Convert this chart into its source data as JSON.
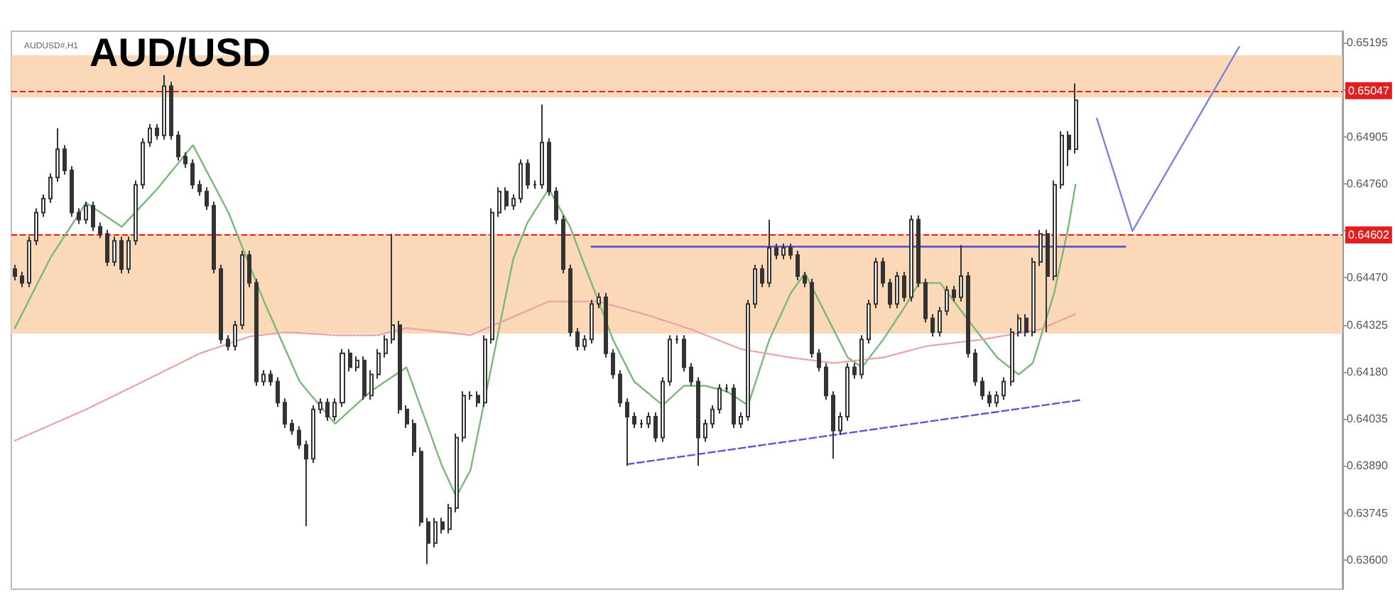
{
  "chart_data": {
    "type": "candlestick",
    "title": "AUD/USD",
    "subtitle": "AUDUSD#,H1",
    "tick_labels": "y",
    "color": "#333333",
    "categories": [
      null,
      null,
      null,
      null,
      null,
      null,
      null,
      null,
      null,
      null,
      null,
      null,
      null,
      null,
      null,
      null,
      null,
      null,
      null,
      null,
      null,
      null,
      null,
      null,
      null,
      null,
      null,
      null,
      null,
      null,
      null,
      null,
      null,
      null,
      null,
      null,
      null,
      null,
      null,
      null,
      null,
      null,
      null,
      null,
      null,
      null,
      null,
      null,
      null,
      null,
      null,
      null,
      null,
      null,
      null,
      null,
      null,
      null,
      null,
      null,
      null,
      null,
      null,
      null,
      null,
      null,
      null,
      null,
      null,
      null,
      null,
      null,
      null,
      null,
      null,
      null,
      null,
      null,
      null,
      null,
      null,
      null,
      null,
      null,
      null,
      null,
      null,
      null,
      null,
      null,
      null,
      null,
      null,
      null,
      null,
      null,
      null,
      null,
      null,
      null,
      null,
      null,
      null,
      null,
      null,
      null,
      null,
      null,
      null,
      null,
      null,
      null,
      null,
      null,
      null,
      null,
      null,
      null,
      null,
      null,
      null,
      null,
      null,
      null,
      null,
      null,
      null,
      null,
      null,
      null,
      null,
      null,
      null,
      null,
      null,
      null,
      null,
      null,
      null,
      null,
      null,
      null,
      null,
      null,
      null,
      null,
      null,
      null,
      null,
      null,
      null,
      null,
      null,
      null,
      null,
      null,
      null,
      null,
      null,
      null,
      null,
      null,
      null,
      null,
      null,
      null,
      null,
      null,
      null,
      null,
      null,
      null,
      null,
      null,
      null,
      null,
      null,
      null,
      null,
      null,
      null,
      null,
      null,
      null,
      null,
      null,
      null
    ],
    "ohlc": [
      [
        0.64497,
        0.6451,
        0.64462,
        0.64475
      ],
      [
        0.64475,
        0.64488,
        0.64441,
        0.64454
      ],
      [
        0.64454,
        0.64597,
        0.64441,
        0.64584
      ],
      [
        0.64584,
        0.64684,
        0.64571,
        0.64671
      ],
      [
        0.64671,
        0.64727,
        0.64658,
        0.64714
      ],
      [
        0.64714,
        0.64792,
        0.64701,
        0.64779
      ],
      [
        0.64779,
        0.64931,
        0.64766,
        0.64866
      ],
      [
        0.64866,
        0.64879,
        0.64788,
        0.64801
      ],
      [
        0.64801,
        0.64814,
        0.64658,
        0.64671
      ],
      [
        0.64671,
        0.64684,
        0.64636,
        0.64649
      ],
      [
        0.64649,
        0.64705,
        0.64636,
        0.64692
      ],
      [
        0.64692,
        0.64705,
        0.64614,
        0.64627
      ],
      [
        0.64627,
        0.6464,
        0.64592,
        0.64605
      ],
      [
        0.64605,
        0.64618,
        0.64506,
        0.64519
      ],
      [
        0.64519,
        0.64597,
        0.64506,
        0.64584
      ],
      [
        0.64584,
        0.64597,
        0.64484,
        0.64497
      ],
      [
        0.64497,
        0.64597,
        0.64484,
        0.64584
      ],
      [
        0.64584,
        0.6477,
        0.64571,
        0.64757
      ],
      [
        0.64757,
        0.649,
        0.64744,
        0.64887
      ],
      [
        0.64887,
        0.64944,
        0.64874,
        0.64931
      ],
      [
        0.64931,
        0.64944,
        0.64896,
        0.64909
      ],
      [
        0.64909,
        0.65095,
        0.64896,
        0.65061
      ],
      [
        0.65061,
        0.65074,
        0.64896,
        0.64909
      ],
      [
        0.64909,
        0.64922,
        0.64831,
        0.64844
      ],
      [
        0.64844,
        0.64857,
        0.64809,
        0.64822
      ],
      [
        0.64822,
        0.64835,
        0.64744,
        0.64757
      ],
      [
        0.64757,
        0.6477,
        0.64723,
        0.64736
      ],
      [
        0.64736,
        0.64749,
        0.64679,
        0.64692
      ],
      [
        0.64692,
        0.64705,
        0.64484,
        0.64497
      ],
      [
        0.64497,
        0.6451,
        0.64267,
        0.6428
      ],
      [
        0.6428,
        0.64293,
        0.64246,
        0.64259
      ],
      [
        0.64259,
        0.64337,
        0.64246,
        0.64324
      ],
      [
        0.64324,
        0.64553,
        0.64311,
        0.6454
      ],
      [
        0.6454,
        0.64553,
        0.64441,
        0.64454
      ],
      [
        0.64454,
        0.64467,
        0.64137,
        0.6415
      ],
      [
        0.6415,
        0.64185,
        0.64137,
        0.64172
      ],
      [
        0.64172,
        0.64185,
        0.64137,
        0.6415
      ],
      [
        0.6415,
        0.64163,
        0.64072,
        0.64085
      ],
      [
        0.64085,
        0.64098,
        0.64007,
        0.6402
      ],
      [
        0.6402,
        0.64033,
        0.63986,
        0.63999
      ],
      [
        0.63999,
        0.64012,
        0.63942,
        0.63955
      ],
      [
        0.63955,
        0.63968,
        0.63704,
        0.63912
      ],
      [
        0.63912,
        0.64077,
        0.63899,
        0.64064
      ],
      [
        0.64064,
        0.64098,
        0.64051,
        0.64085
      ],
      [
        0.64085,
        0.64098,
        0.64029,
        0.64042
      ],
      [
        0.64042,
        0.64098,
        0.64029,
        0.64085
      ],
      [
        0.64085,
        0.6425,
        0.64072,
        0.64237
      ],
      [
        0.64237,
        0.6425,
        0.64181,
        0.64194
      ],
      [
        0.64194,
        0.64228,
        0.64181,
        0.64215
      ],
      [
        0.64215,
        0.64228,
        0.64094,
        0.64107
      ],
      [
        0.64107,
        0.64185,
        0.64094,
        0.64172
      ],
      [
        0.64172,
        0.6425,
        0.64159,
        0.64237
      ],
      [
        0.64237,
        0.64293,
        0.64224,
        0.6428
      ],
      [
        0.6428,
        0.64605,
        0.64267,
        0.64324
      ],
      [
        0.64324,
        0.64337,
        0.64051,
        0.64064
      ],
      [
        0.64064,
        0.64077,
        0.64007,
        0.6402
      ],
      [
        0.6402,
        0.64033,
        0.63921,
        0.63934
      ],
      [
        0.63934,
        0.63947,
        0.63704,
        0.63717
      ],
      [
        0.63717,
        0.6373,
        0.63587,
        0.63652
      ],
      [
        0.63652,
        0.6373,
        0.63639,
        0.63717
      ],
      [
        0.63717,
        0.6373,
        0.63682,
        0.63695
      ],
      [
        0.63695,
        0.63773,
        0.63682,
        0.6376
      ],
      [
        0.6376,
        0.6399,
        0.63747,
        0.63977
      ],
      [
        0.63977,
        0.6412,
        0.63964,
        0.64107
      ],
      [
        0.64107,
        0.6412,
        0.64094,
        0.64107
      ],
      [
        0.64107,
        0.6412,
        0.64072,
        0.64085
      ],
      [
        0.64085,
        0.64293,
        0.64072,
        0.6428
      ],
      [
        0.6428,
        0.64684,
        0.64267,
        0.64671
      ],
      [
        0.64671,
        0.64749,
        0.64658,
        0.64736
      ],
      [
        0.64736,
        0.64749,
        0.64679,
        0.64692
      ],
      [
        0.64692,
        0.64727,
        0.64679,
        0.64714
      ],
      [
        0.64714,
        0.64835,
        0.64701,
        0.64822
      ],
      [
        0.64822,
        0.64835,
        0.64744,
        0.64757
      ],
      [
        0.64757,
        0.6477,
        0.64744,
        0.64757
      ],
      [
        0.64757,
        0.65004,
        0.64744,
        0.64887
      ],
      [
        0.64887,
        0.649,
        0.64723,
        0.64736
      ],
      [
        0.64736,
        0.64749,
        0.64636,
        0.64649
      ],
      [
        0.64649,
        0.64662,
        0.64484,
        0.64497
      ],
      [
        0.64497,
        0.6451,
        0.64289,
        0.64302
      ],
      [
        0.64302,
        0.64315,
        0.64246,
        0.64259
      ],
      [
        0.64259,
        0.64293,
        0.64246,
        0.6428
      ],
      [
        0.6428,
        0.64402,
        0.64267,
        0.64389
      ],
      [
        0.64389,
        0.64423,
        0.64376,
        0.6441
      ],
      [
        0.6441,
        0.64423,
        0.64224,
        0.64237
      ],
      [
        0.64237,
        0.6425,
        0.64159,
        0.64172
      ],
      [
        0.64172,
        0.64185,
        0.64072,
        0.64085
      ],
      [
        0.64085,
        0.64098,
        0.6389,
        0.64042
      ],
      [
        0.64042,
        0.64055,
        0.64007,
        0.6402
      ],
      [
        0.6402,
        0.64033,
        0.64007,
        0.6402
      ],
      [
        0.6402,
        0.64055,
        0.64007,
        0.64042
      ],
      [
        0.64042,
        0.64055,
        0.63964,
        0.63977
      ],
      [
        0.63977,
        0.64163,
        0.63964,
        0.6415
      ],
      [
        0.6415,
        0.64293,
        0.64137,
        0.6428
      ],
      [
        0.6428,
        0.64293,
        0.64267,
        0.6428
      ],
      [
        0.6428,
        0.64293,
        0.64181,
        0.64194
      ],
      [
        0.64194,
        0.64207,
        0.64137,
        0.6415
      ],
      [
        0.6415,
        0.64163,
        0.6389,
        0.63977
      ],
      [
        0.63977,
        0.64033,
        0.63964,
        0.6402
      ],
      [
        0.6402,
        0.64077,
        0.64007,
        0.64064
      ],
      [
        0.64064,
        0.64142,
        0.64051,
        0.64129
      ],
      [
        0.64129,
        0.64142,
        0.64116,
        0.64129
      ],
      [
        0.64129,
        0.64142,
        0.64007,
        0.6402
      ],
      [
        0.6402,
        0.64055,
        0.64007,
        0.64042
      ],
      [
        0.64042,
        0.64402,
        0.64029,
        0.64389
      ],
      [
        0.64389,
        0.6451,
        0.64376,
        0.64497
      ],
      [
        0.64497,
        0.6451,
        0.64441,
        0.64454
      ],
      [
        0.64454,
        0.64649,
        0.64441,
        0.64562
      ],
      [
        0.64562,
        0.64575,
        0.64527,
        0.6454
      ],
      [
        0.6454,
        0.64575,
        0.64527,
        0.64562
      ],
      [
        0.64562,
        0.64575,
        0.64527,
        0.6454
      ],
      [
        0.6454,
        0.64553,
        0.64462,
        0.64475
      ],
      [
        0.64475,
        0.64488,
        0.64441,
        0.64454
      ],
      [
        0.64454,
        0.64467,
        0.64224,
        0.64237
      ],
      [
        0.64237,
        0.6425,
        0.64181,
        0.64194
      ],
      [
        0.64194,
        0.64207,
        0.64094,
        0.64107
      ],
      [
        0.64107,
        0.6412,
        0.63912,
        0.63999
      ],
      [
        0.63999,
        0.64055,
        0.63986,
        0.64042
      ],
      [
        0.64042,
        0.64207,
        0.64029,
        0.64194
      ],
      [
        0.64194,
        0.64207,
        0.64159,
        0.64172
      ],
      [
        0.64172,
        0.64293,
        0.64159,
        0.6428
      ],
      [
        0.6428,
        0.64402,
        0.64267,
        0.64389
      ],
      [
        0.64389,
        0.64532,
        0.64376,
        0.64519
      ],
      [
        0.64519,
        0.64532,
        0.64441,
        0.64454
      ],
      [
        0.64454,
        0.64467,
        0.64376,
        0.64389
      ],
      [
        0.64389,
        0.64488,
        0.64376,
        0.64475
      ],
      [
        0.64475,
        0.64488,
        0.64397,
        0.6441
      ],
      [
        0.6441,
        0.64662,
        0.64397,
        0.64649
      ],
      [
        0.64649,
        0.64662,
        0.64441,
        0.64454
      ],
      [
        0.64454,
        0.64467,
        0.64332,
        0.64345
      ],
      [
        0.64345,
        0.64358,
        0.64289,
        0.64302
      ],
      [
        0.64302,
        0.6438,
        0.64289,
        0.64367
      ],
      [
        0.64367,
        0.64445,
        0.64354,
        0.64432
      ],
      [
        0.64432,
        0.64445,
        0.64397,
        0.6441
      ],
      [
        0.6441,
        0.64571,
        0.64397,
        0.64475
      ],
      [
        0.64475,
        0.64488,
        0.64224,
        0.64237
      ],
      [
        0.64237,
        0.6425,
        0.64137,
        0.6415
      ],
      [
        0.6415,
        0.64163,
        0.64094,
        0.64107
      ],
      [
        0.64107,
        0.6412,
        0.64072,
        0.64085
      ],
      [
        0.64085,
        0.6412,
        0.64072,
        0.64107
      ],
      [
        0.64107,
        0.64163,
        0.64094,
        0.6415
      ],
      [
        0.6415,
        0.64315,
        0.64137,
        0.64302
      ],
      [
        0.64302,
        0.64358,
        0.64289,
        0.64345
      ],
      [
        0.64345,
        0.64358,
        0.64289,
        0.64302
      ],
      [
        0.64302,
        0.64532,
        0.64289,
        0.64519
      ],
      [
        0.64519,
        0.64618,
        0.64506,
        0.64605
      ],
      [
        0.64605,
        0.64618,
        0.64302,
        0.64475
      ],
      [
        0.64475,
        0.6477,
        0.64462,
        0.64757
      ],
      [
        0.64757,
        0.64922,
        0.64744,
        0.64909
      ],
      [
        0.64909,
        0.64922,
        0.64814,
        0.64866
      ],
      [
        0.64866,
        0.65069,
        0.64853,
        0.65017
      ],
      null,
      null,
      null,
      null,
      null,
      null,
      null,
      null,
      null,
      null,
      null,
      null,
      null,
      null,
      null,
      null,
      null,
      null,
      null,
      null,
      null,
      null,
      null,
      null,
      null,
      null,
      null,
      null,
      null,
      null,
      null,
      null,
      null,
      null,
      null,
      null,
      null
    ],
    "ylim": [
      0.6351,
      0.6523
    ],
    "yticks": [
      {
        "value": 0.636,
        "label": "0.63600"
      },
      {
        "value": 0.63745,
        "label": "0.63745"
      },
      {
        "value": 0.6389,
        "label": "0.63890"
      },
      {
        "value": 0.64035,
        "label": "0.64035"
      },
      {
        "value": 0.6418,
        "label": "0.64180"
      },
      {
        "value": 0.64325,
        "label": "0.64325"
      },
      {
        "value": 0.6447,
        "label": "0.64470"
      },
      {
        "value": 0.64615,
        "label": null
      },
      {
        "value": 0.6476,
        "label": "0.64760"
      },
      {
        "value": 0.64905,
        "label": "0.64905"
      },
      {
        "value": 0.6505,
        "label": null
      },
      {
        "value": 0.65195,
        "label": "0.65195"
      }
    ],
    "ref_lines": [
      {
        "axis": "y",
        "value": 0.65047,
        "label": "0.65047",
        "color": "#e02020",
        "line_style": "dashed"
      },
      {
        "axis": "y",
        "value": 0.64602,
        "label": "0.64602",
        "color": "#e02020",
        "line_style": "dashed"
      }
    ],
    "bands": [
      {
        "axis": "y",
        "from": 0.65026,
        "to": 0.65156,
        "color": "#fbd9b8"
      },
      {
        "axis": "y",
        "from": 0.64298,
        "to": 0.64605,
        "color": "#fbd9b8"
      }
    ],
    "series": [
      {
        "type": "line",
        "color": "#7ab87a",
        "values": [
          0.64315,
          null,
          null,
          null,
          null,
          0.64532,
          null,
          null,
          null,
          null,
          0.64701,
          null,
          null,
          null,
          null,
          0.64627,
          null,
          null,
          null,
          null,
          0.64744,
          null,
          null,
          null,
          null,
          0.64879,
          null,
          null,
          null,
          null,
          0.64671,
          null,
          null,
          null,
          null,
          0.64397,
          null,
          null,
          null,
          null,
          0.6415,
          null,
          null,
          null,
          null,
          0.6402,
          null,
          null,
          null,
          null,
          0.6412,
          null,
          null,
          null,
          null,
          0.64194,
          null,
          null,
          null,
          null,
          0.6389,
          null,
          0.63795,
          null,
          0.63877,
          null,
          0.64094,
          null,
          0.64311,
          null,
          0.64527,
          null,
          0.6464,
          null,
          null,
          0.64744,
          null,
          null,
          0.64627,
          null,
          0.6451,
          null,
          0.64397,
          null,
          0.6428,
          null,
          null,
          0.6415,
          null,
          null,
          null,
          0.64077,
          null,
          null,
          0.64137,
          null,
          null,
          0.64137,
          null,
          null,
          0.6412,
          null,
          null,
          0.64077,
          null,
          null,
          0.6428,
          null,
          null,
          0.64423,
          null,
          0.64484,
          null,
          0.64397,
          null,
          null,
          null,
          0.64224,
          null,
          0.64194,
          null,
          null,
          0.6428,
          null,
          null,
          0.6438,
          null,
          0.64454,
          null,
          null,
          0.64454,
          null,
          null,
          null,
          0.64337,
          null,
          null,
          null,
          0.64224,
          null,
          null,
          0.64172,
          null,
          0.64207,
          null,
          null,
          0.64423,
          null,
          0.64627,
          0.64757,
          null,
          null,
          null,
          null,
          null,
          null,
          null,
          null,
          null,
          null,
          null,
          null,
          null,
          null,
          null,
          null,
          null,
          null,
          null,
          null,
          null,
          null,
          null,
          null,
          null,
          null,
          null,
          null,
          null,
          null,
          null,
          null,
          null,
          null,
          null,
          null,
          null
        ]
      },
      {
        "type": "line",
        "color": "#e8a0a0",
        "line_style": "dotted",
        "values": [
          0.63968,
          null,
          null,
          null,
          null,
          null,
          null,
          null,
          null,
          null,
          0.64064,
          null,
          null,
          null,
          null,
          null,
          null,
          null,
          0.6415,
          null,
          null,
          null,
          null,
          null,
          null,
          null,
          0.64237,
          null,
          null,
          null,
          null,
          null,
          null,
          0.64289,
          null,
          null,
          null,
          null,
          0.64302,
          null,
          null,
          null,
          null,
          null,
          null,
          0.64293,
          null,
          null,
          null,
          null,
          null,
          0.64293,
          null,
          null,
          null,
          0.64315,
          null,
          null,
          null,
          null,
          null,
          null,
          null,
          null,
          0.64293,
          null,
          null,
          null,
          null,
          null,
          null,
          null,
          null,
          null,
          null,
          0.64397,
          null,
          null,
          null,
          null,
          null,
          null,
          0.64397,
          null,
          null,
          null,
          null,
          null,
          null,
          0.64354,
          null,
          null,
          null,
          null,
          null,
          0.64311,
          null,
          null,
          null,
          null,
          null,
          null,
          0.6425,
          null,
          null,
          null,
          null,
          null,
          null,
          0.64224,
          null,
          null,
          null,
          null,
          null,
          0.64207,
          null,
          null,
          null,
          null,
          null,
          null,
          0.64224,
          null,
          null,
          null,
          null,
          null,
          0.64259,
          null,
          null,
          null,
          null,
          null,
          null,
          null,
          0.6428,
          null,
          null,
          null,
          null,
          null,
          null,
          null,
          0.64311,
          null,
          null,
          null,
          null,
          0.64358,
          null,
          null,
          null,
          null,
          null,
          null,
          null,
          null,
          null,
          null,
          null,
          null,
          null,
          null,
          null,
          null,
          null,
          null,
          null,
          null,
          null,
          null,
          null,
          null,
          null,
          null,
          null,
          null,
          null,
          null,
          null,
          null,
          null,
          null,
          null,
          null,
          null
        ]
      },
      {
        "type": "line",
        "color": "#4a4ad0",
        "values": [
          null,
          null,
          null,
          null,
          null,
          null,
          null,
          null,
          null,
          null,
          null,
          null,
          null,
          null,
          null,
          null,
          null,
          null,
          null,
          null,
          null,
          null,
          null,
          null,
          null,
          null,
          null,
          null,
          null,
          null,
          null,
          null,
          null,
          null,
          null,
          null,
          null,
          null,
          null,
          null,
          null,
          null,
          null,
          null,
          null,
          null,
          null,
          null,
          null,
          null,
          null,
          null,
          null,
          null,
          null,
          null,
          null,
          null,
          null,
          null,
          null,
          null,
          null,
          null,
          null,
          null,
          null,
          null,
          null,
          null,
          null,
          null,
          null,
          null,
          null,
          null,
          null,
          null,
          null,
          null,
          null,
          0.64566,
          null,
          null,
          null,
          null,
          null,
          null,
          null,
          null,
          null,
          null,
          null,
          null,
          null,
          null,
          null,
          null,
          null,
          null,
          null,
          null,
          null,
          null,
          null,
          null,
          null,
          null,
          null,
          null,
          null,
          null,
          null,
          null,
          null,
          null,
          null,
          null,
          null,
          null,
          null,
          null,
          null,
          null,
          null,
          null,
          null,
          null,
          null,
          null,
          null,
          null,
          null,
          null,
          null,
          null,
          null,
          null,
          null,
          null,
          null,
          null,
          null,
          null,
          null,
          null,
          null,
          null,
          null,
          null,
          null,
          null,
          null,
          null,
          null,
          null,
          0.64566,
          null,
          null,
          null,
          null,
          null,
          null,
          null,
          null,
          null,
          null,
          null,
          null,
          null,
          null,
          null,
          null,
          null,
          null,
          null,
          null,
          null,
          null,
          null,
          null,
          null,
          null,
          null,
          null,
          null,
          null
        ]
      },
      {
        "type": "line",
        "color": "#5a5ad8",
        "line_style": "dashed",
        "values": [
          null,
          null,
          null,
          null,
          null,
          null,
          null,
          null,
          null,
          null,
          null,
          null,
          null,
          null,
          null,
          null,
          null,
          null,
          null,
          null,
          null,
          null,
          null,
          null,
          null,
          null,
          null,
          null,
          null,
          null,
          null,
          null,
          null,
          null,
          null,
          null,
          null,
          null,
          null,
          null,
          null,
          null,
          null,
          null,
          null,
          null,
          null,
          null,
          null,
          null,
          null,
          null,
          null,
          null,
          null,
          null,
          null,
          null,
          null,
          null,
          null,
          null,
          null,
          null,
          null,
          null,
          null,
          null,
          null,
          null,
          null,
          null,
          null,
          null,
          null,
          null,
          null,
          null,
          null,
          null,
          null,
          null,
          null,
          null,
          null,
          null,
          0.63895,
          null,
          null,
          null,
          null,
          null,
          null,
          null,
          null,
          null,
          null,
          null,
          null,
          null,
          null,
          null,
          null,
          null,
          null,
          null,
          null,
          null,
          null,
          null,
          null,
          null,
          null,
          null,
          null,
          null,
          null,
          null,
          null,
          null,
          null,
          null,
          null,
          null,
          null,
          null,
          null,
          null,
          null,
          null,
          null,
          null,
          null,
          null,
          null,
          null,
          null,
          null,
          null,
          null,
          null,
          null,
          null,
          null,
          null,
          null,
          null,
          null,
          null,
          null,
          0.64094,
          null,
          null,
          null,
          null,
          null,
          null,
          null,
          null,
          null,
          null,
          null,
          null,
          null,
          null,
          null,
          null,
          null,
          null,
          null,
          null,
          null,
          null,
          null,
          null,
          null,
          null,
          null,
          null,
          null,
          null,
          null,
          null,
          null,
          null,
          null,
          null
        ]
      },
      {
        "type": "line",
        "color": "#8080e0",
        "values": [
          null,
          null,
          null,
          null,
          null,
          null,
          null,
          null,
          null,
          null,
          null,
          null,
          null,
          null,
          null,
          null,
          null,
          null,
          null,
          null,
          null,
          null,
          null,
          null,
          null,
          null,
          null,
          null,
          null,
          null,
          null,
          null,
          null,
          null,
          null,
          null,
          null,
          null,
          null,
          null,
          null,
          null,
          null,
          null,
          null,
          null,
          null,
          null,
          null,
          null,
          null,
          null,
          null,
          null,
          null,
          null,
          null,
          null,
          null,
          null,
          null,
          null,
          null,
          null,
          null,
          null,
          null,
          null,
          null,
          null,
          null,
          null,
          null,
          null,
          null,
          null,
          null,
          null,
          null,
          null,
          null,
          null,
          null,
          null,
          null,
          null,
          null,
          null,
          null,
          null,
          null,
          null,
          null,
          null,
          null,
          null,
          null,
          null,
          null,
          null,
          null,
          null,
          null,
          null,
          null,
          null,
          null,
          null,
          null,
          null,
          null,
          null,
          null,
          null,
          null,
          null,
          null,
          null,
          null,
          null,
          null,
          null,
          null,
          null,
          null,
          null,
          null,
          null,
          null,
          null,
          null,
          null,
          null,
          null,
          null,
          null,
          null,
          null,
          null,
          null,
          null,
          null,
          null,
          null,
          null,
          null,
          null,
          null,
          null,
          null,
          null,
          null,
          0.64961,
          null,
          null,
          null,
          null,
          0.64614,
          null,
          null,
          null,
          null,
          null,
          null,
          null,
          null,
          null,
          null,
          null,
          null,
          null,
          null,
          0.65182,
          null,
          null,
          null,
          null,
          null,
          null,
          null,
          null,
          null,
          null,
          null,
          null,
          null,
          null
        ]
      }
    ]
  }
}
